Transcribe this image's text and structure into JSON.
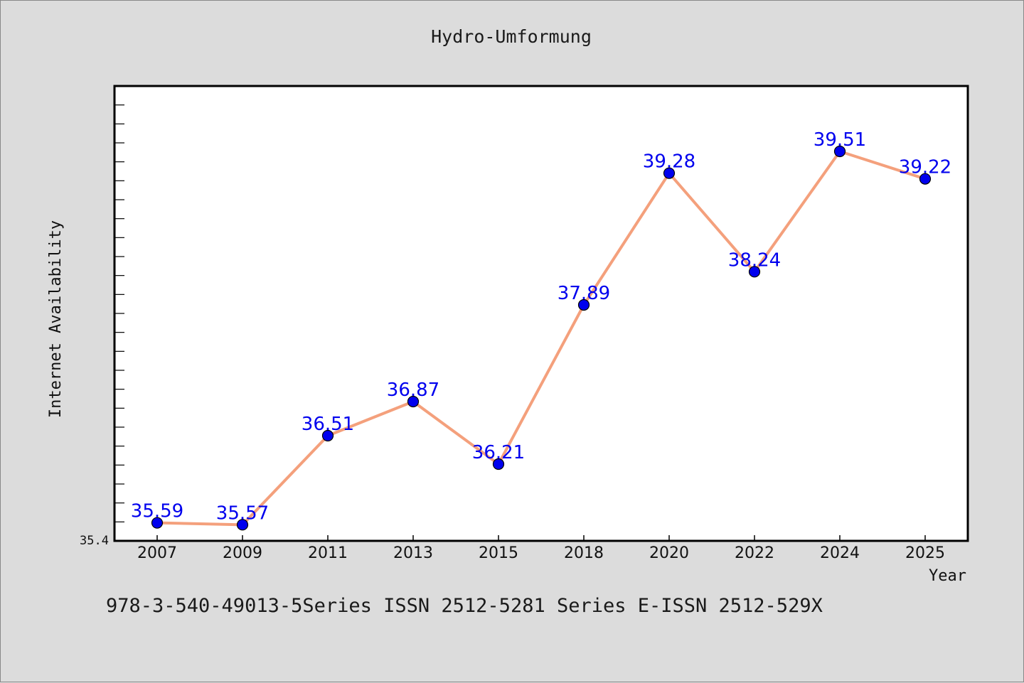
{
  "header": {
    "title": "Hydro-Umformung"
  },
  "footer": {
    "text": "978-3-540-49013-5Series ISSN 2512-5281 Series E-ISSN 2512-529X"
  },
  "colors": {
    "background": "#dcdcdc",
    "plot_background": "#ffffff",
    "line": "#f4a07c",
    "marker": "#0000ee",
    "data_label": "#0000ee",
    "axis": "#000000"
  },
  "chart_data": {
    "type": "line",
    "title": "Hydro-Umformung",
    "xlabel": "Year",
    "ylabel": "Internet Availability",
    "categories": [
      "2007",
      "2009",
      "2011",
      "2013",
      "2015",
      "2018",
      "2020",
      "2022",
      "2024",
      "2025"
    ],
    "series": [
      {
        "values": [
          35.59,
          35.57,
          36.51,
          36.87,
          36.21,
          37.89,
          39.28,
          38.24,
          39.51,
          39.22
        ],
        "labels": [
          "35.59",
          "35.57",
          "36.51",
          "36.87",
          "36.21",
          "37.89",
          "39.28",
          "38.24",
          "39.51",
          "39.22"
        ]
      }
    ],
    "ylim": [
      35.4,
      40.2
    ],
    "y_tick_labels": [
      "35.4"
    ],
    "y_minor_tick_step": 0.2,
    "grid": false,
    "legend": "none",
    "markers": "circle",
    "data_labels": true
  }
}
